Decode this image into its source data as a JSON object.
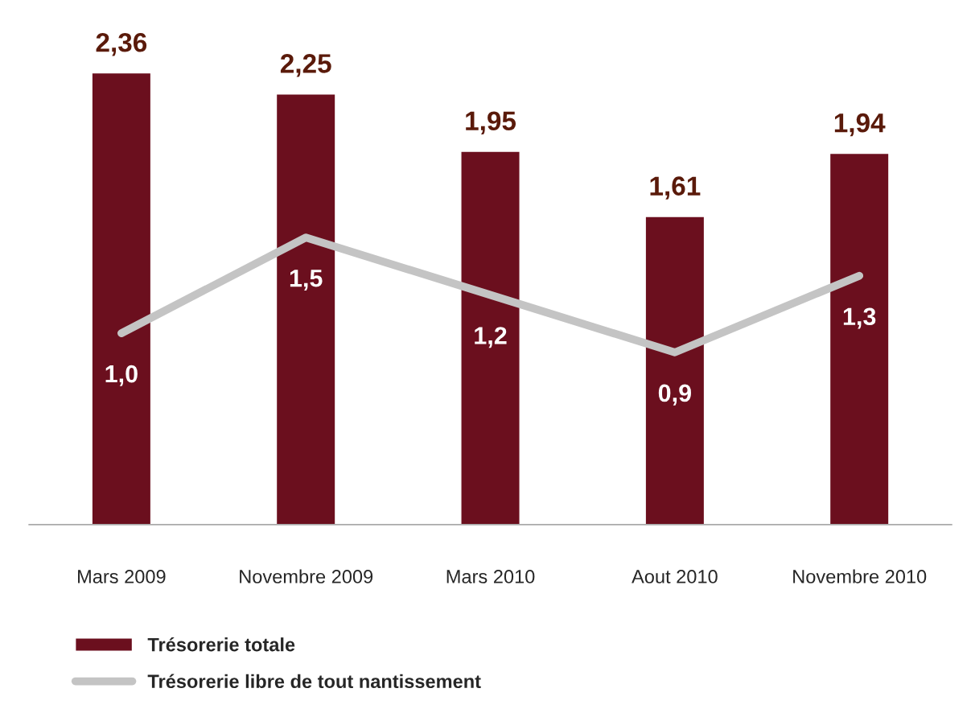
{
  "chart_data": {
    "type": "bar",
    "categories": [
      "Mars 2009",
      "Novembre 2009",
      "Mars 2010",
      "Aout 2010",
      "Novembre 2010"
    ],
    "series": [
      {
        "name": "Trésorerie totale",
        "color": "#6b0f1e",
        "values": [
          2.36,
          2.25,
          1.95,
          1.61,
          1.94
        ],
        "value_labels": [
          "2,36",
          "2,25",
          "1,95",
          "1,61",
          "1,94"
        ]
      },
      {
        "name": "Trésorerie libre de tout nantissement",
        "type": "line",
        "color": "#c4c4c4",
        "values": [
          1.0,
          1.5,
          1.2,
          0.9,
          1.3
        ],
        "value_labels": [
          "1,0",
          "1,5",
          "1,2",
          "0,9",
          "1,3"
        ]
      }
    ],
    "legend": "bottom left",
    "grid": false,
    "tick_labels": "x",
    "marker": "none",
    "line_style": "solid"
  }
}
